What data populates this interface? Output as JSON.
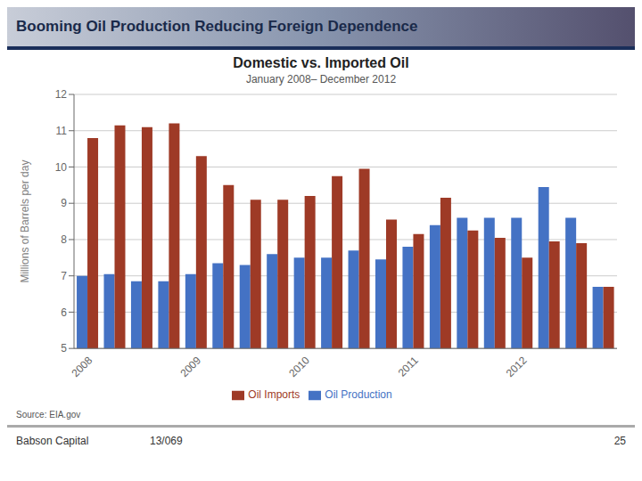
{
  "chart_data": {
    "type": "bar",
    "title": "Domestic vs. Imported Oil",
    "subtitle": "January 2008– December 2012",
    "ylabel": "Millions of Barrels per day",
    "categories": [
      "2008",
      null,
      null,
      null,
      "2009",
      null,
      null,
      null,
      "2010",
      null,
      null,
      null,
      "2011",
      null,
      null,
      null,
      "2012",
      null,
      null,
      null
    ],
    "series": [
      {
        "name": "Oil Production",
        "color": "#4472C4",
        "values": [
          7.0,
          7.05,
          6.85,
          6.85,
          7.05,
          7.35,
          7.3,
          7.6,
          7.5,
          7.5,
          7.7,
          7.45,
          7.8,
          8.4,
          8.6,
          8.6,
          8.6,
          9.45,
          8.6,
          6.7
        ]
      },
      {
        "name": "Oil Imports",
        "color": "#9E3A26",
        "values": [
          10.8,
          11.15,
          11.1,
          11.2,
          10.3,
          9.5,
          9.1,
          9.1,
          9.2,
          9.75,
          9.95,
          8.55,
          8.15,
          9.15,
          8.25,
          8.05,
          7.5,
          7.95,
          7.9,
          6.7
        ]
      }
    ],
    "ylim": [
      5,
      12
    ],
    "yticks": [
      5,
      6,
      7,
      8,
      9,
      10,
      11,
      12
    ],
    "grid": true,
    "legend": "bottom",
    "annotations": [
      "Booming Oil Production Reducing Foreign Dependence",
      "Source:  EIA.gov",
      "Babson Capital",
      "13/069",
      "25"
    ]
  }
}
